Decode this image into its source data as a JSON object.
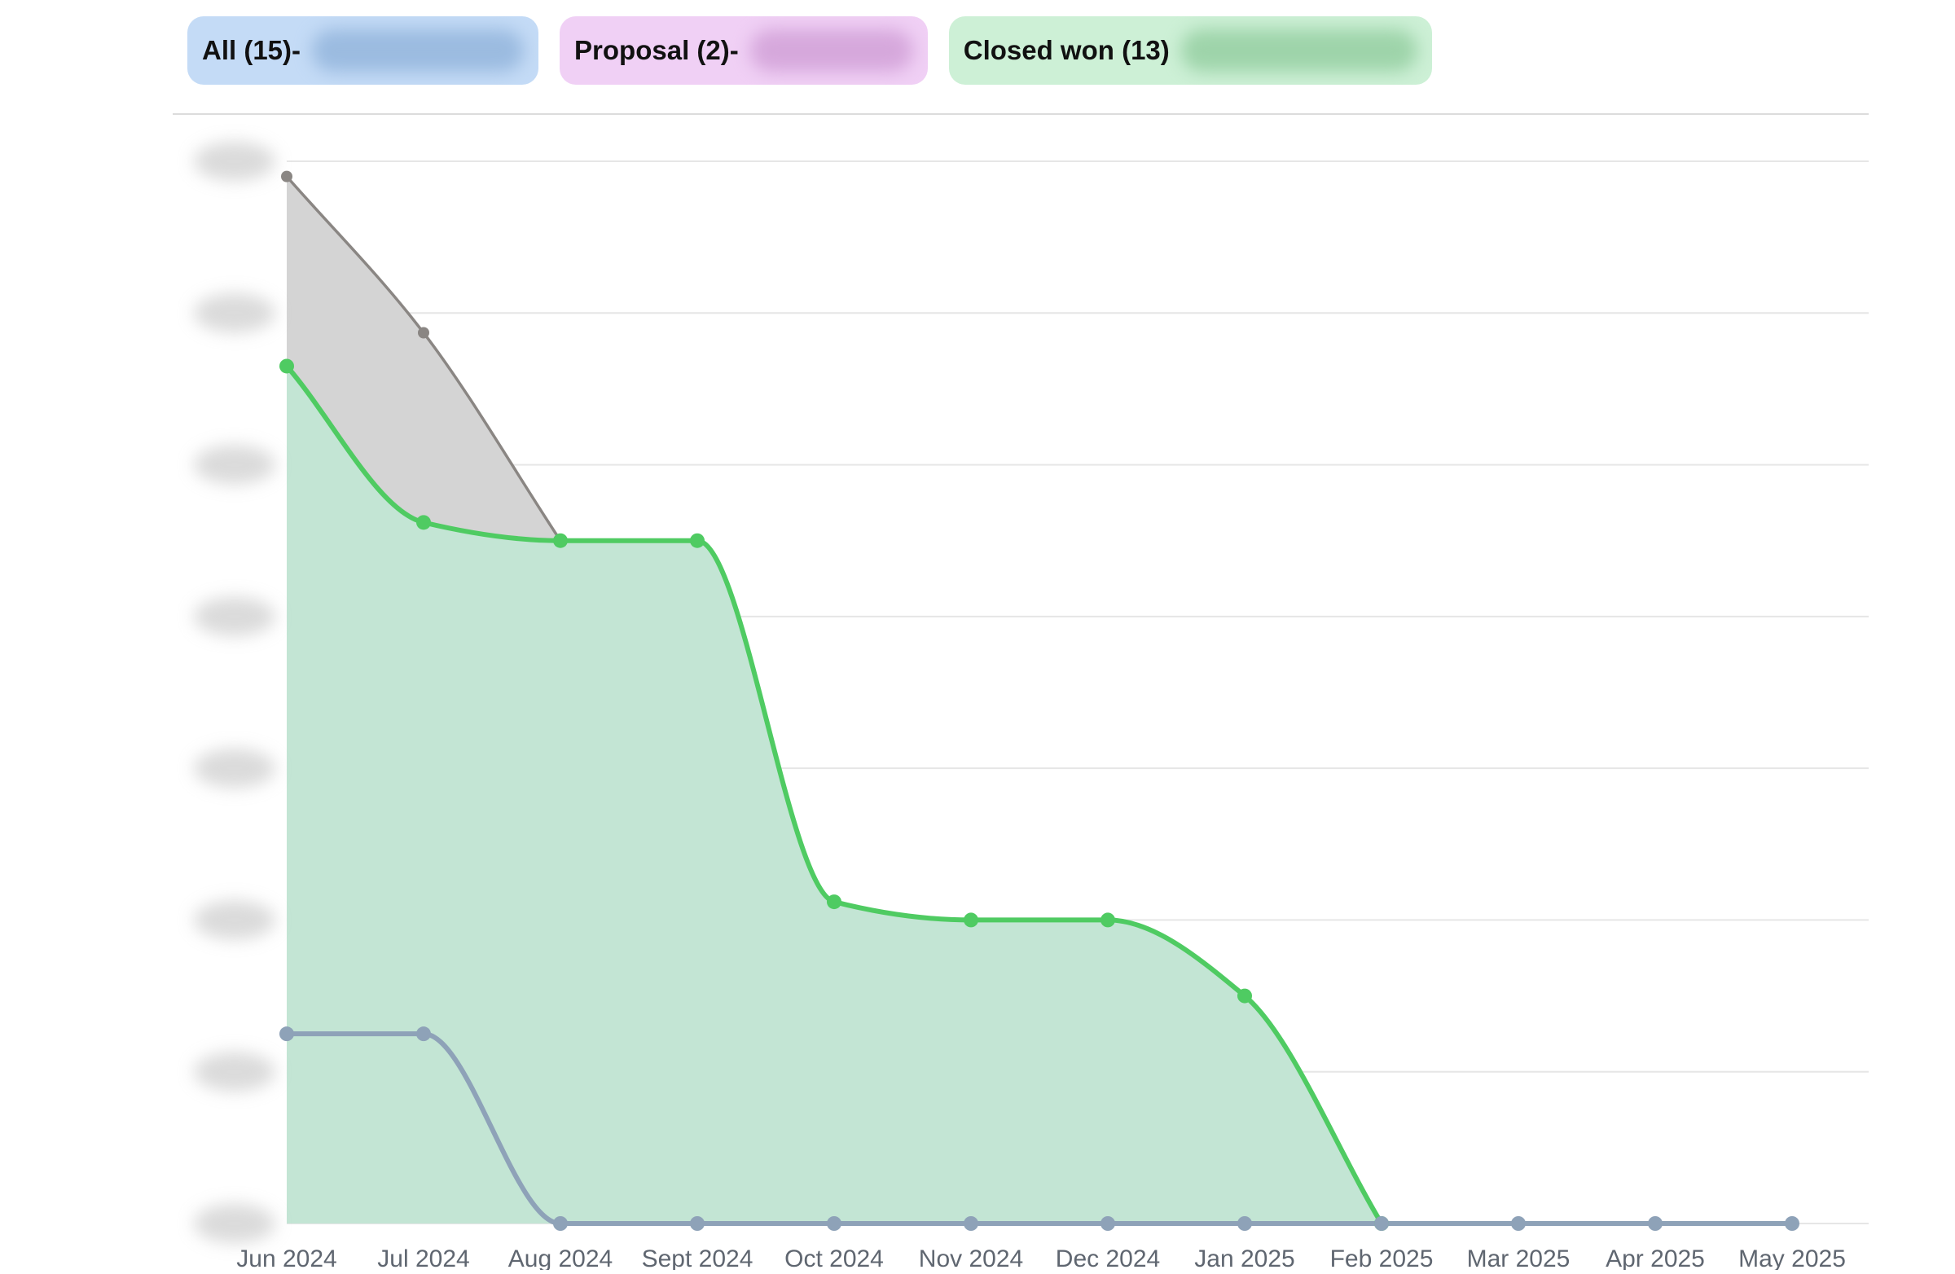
{
  "filters": [
    {
      "label": "All (15)",
      "suffix": " -",
      "bg": "#c4dbf6",
      "blur": "#9bbbe0"
    },
    {
      "label": "Proposal (2)",
      "suffix": " -",
      "bg": "#f0d0f5",
      "blur": "#d6a8dc"
    },
    {
      "label": "Closed won (13)",
      "suffix": "",
      "bg": "#cdf0d6",
      "blur": "#9ed4aa"
    }
  ],
  "colors": {
    "all_line": "#8a8683",
    "all_fill": "#d4d4d4",
    "won_line": "#4fcb62",
    "won_fill": "#c3e5d4",
    "proposal_line": "#8ea2b8",
    "gridline": "#e6e6e6",
    "axis_label": "#5f6670"
  },
  "chart_data": {
    "type": "area",
    "x": [
      "Jun 2024",
      "Jul 2024",
      "Aug 2024",
      "Sept 2024",
      "Oct 2024",
      "Nov 2024",
      "Dec 2024",
      "Jan 2025",
      "Feb 2025",
      "Mar 2025",
      "Apr 2025",
      "May 2025"
    ],
    "ylim": [
      0,
      7
    ],
    "y_tick_labels_obscured": true,
    "grid": true,
    "series": [
      {
        "key": "all",
        "values": [
          6.9,
          5.87,
          4.5,
          null,
          null,
          null,
          null,
          null,
          null,
          null,
          null,
          null
        ]
      },
      {
        "key": "won",
        "values": [
          5.65,
          4.62,
          4.5,
          4.5,
          2.12,
          2.0,
          2.0,
          1.5,
          0,
          null,
          null,
          null
        ]
      },
      {
        "key": "proposal",
        "values": [
          1.25,
          1.25,
          0,
          0,
          0,
          0,
          0,
          0,
          0,
          0,
          0,
          0
        ]
      }
    ]
  }
}
